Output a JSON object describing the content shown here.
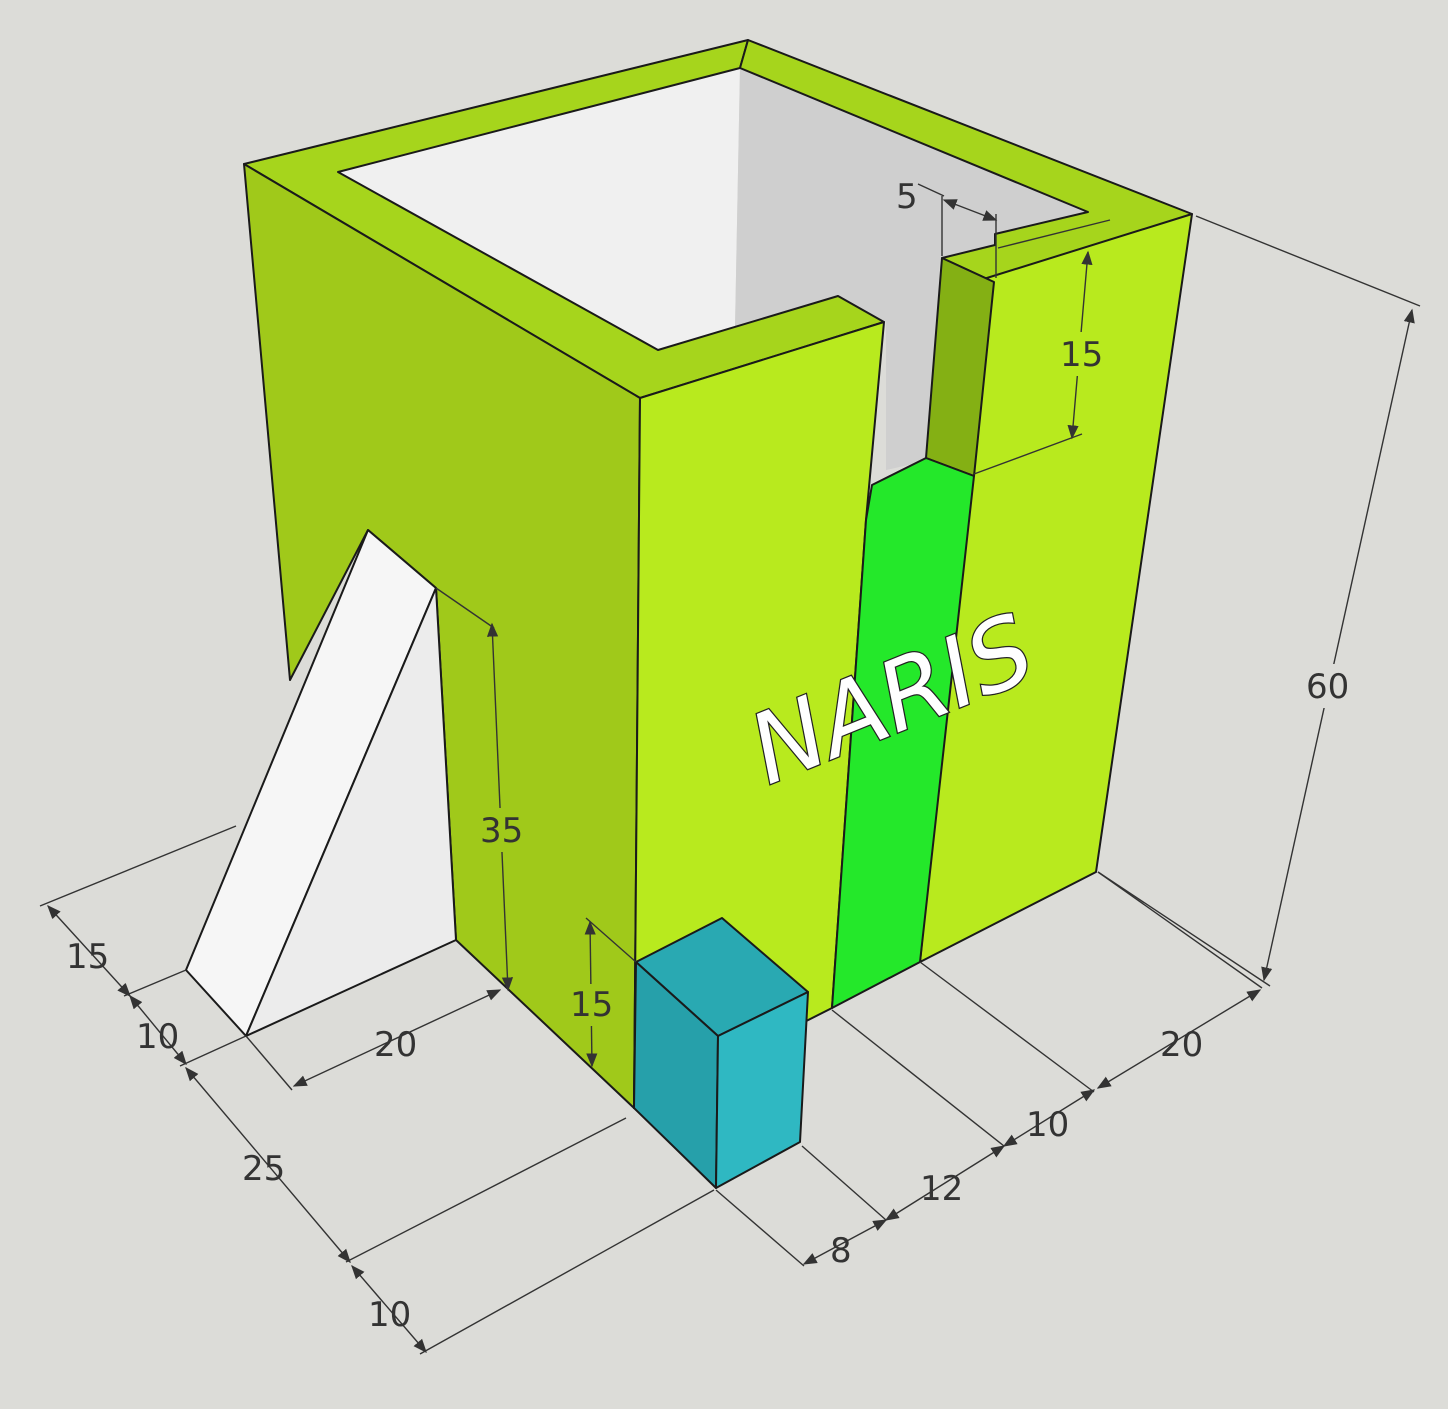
{
  "model": {
    "label": "NARIS",
    "colors": {
      "wall_front": "#b8ea1e",
      "wall_left": "#a0c91a",
      "rim": "#a6d51c",
      "slot_stripe": "#24e82a",
      "slot_inner": "#84b014",
      "ramp_light": "#f6f6f6",
      "ramp_shade": "#ececec",
      "interior_light": "#f0f0f0",
      "interior_shade": "#cfcfcf",
      "block_front": "#2fb8c2",
      "block_side": "#26a0aa",
      "block_top": "#29a9b2"
    }
  },
  "dimensions": {
    "height_total": "60",
    "slot_top_height": "15",
    "slot_width": "5",
    "ramp_opening_height": "35",
    "block_height": "15",
    "left_depth_15": "15",
    "left_depth_10": "10",
    "ramp_length": "20",
    "left_depth_25": "25",
    "left_depth_10b": "10",
    "front_20": "20",
    "front_10": "10",
    "front_12": "12",
    "front_8": "8"
  }
}
